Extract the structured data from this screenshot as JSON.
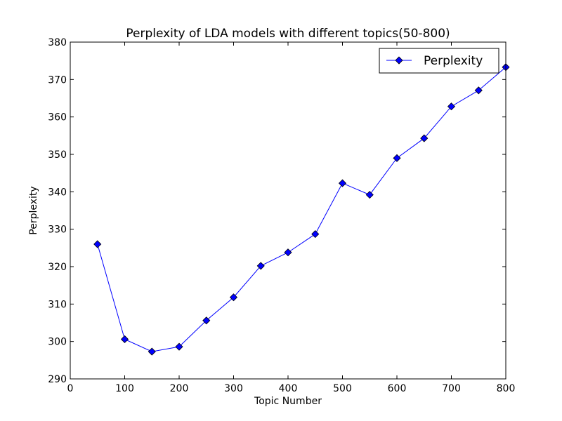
{
  "chart_data": {
    "type": "line",
    "title": "Perplexity of LDA models with different topics(50-800)",
    "xlabel": "Topic Number",
    "ylabel": "Perplexity",
    "xlim": [
      0,
      800
    ],
    "ylim": [
      290,
      380
    ],
    "xticks": [
      0,
      100,
      200,
      300,
      400,
      500,
      600,
      700,
      800
    ],
    "yticks": [
      290,
      300,
      310,
      320,
      330,
      340,
      350,
      360,
      370,
      380
    ],
    "grid": false,
    "legend_position": "top-right",
    "series": [
      {
        "name": "Perplexity",
        "color": "#0000ff",
        "marker": "diamond",
        "x": [
          50,
          100,
          150,
          200,
          250,
          300,
          350,
          400,
          450,
          500,
          550,
          600,
          650,
          700,
          750,
          800
        ],
        "y": [
          326.0,
          300.6,
          297.3,
          298.6,
          305.6,
          311.8,
          320.2,
          323.8,
          328.7,
          342.3,
          339.2,
          349.0,
          354.3,
          362.8,
          367.1,
          373.3
        ]
      }
    ]
  }
}
